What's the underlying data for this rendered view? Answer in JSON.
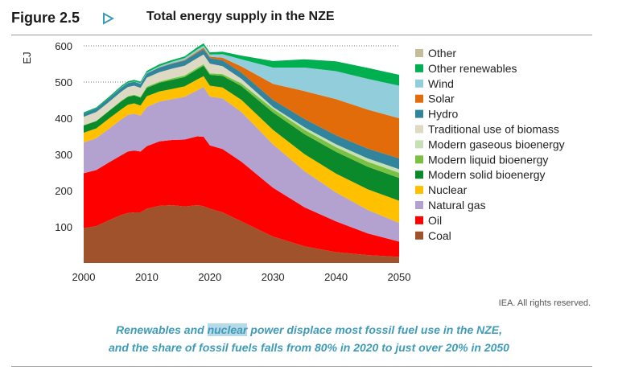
{
  "header": {
    "figure_label": "Figure 2.5",
    "title": "Total energy supply in the NZE"
  },
  "credit": "IEA. All rights reserved.",
  "caption": {
    "line1_before": "Renewables and ",
    "line1_highlight": "nuclear",
    "line1_after": " power displace most fossil fuel use in the NZE,",
    "line2": "and the share of fossil fuels falls from 80% in 2020 to just over 20% in 2050"
  },
  "chart_data": {
    "type": "area",
    "stacked": true,
    "title": "Total energy supply in the NZE",
    "xlabel": "",
    "ylabel": "EJ",
    "xlim": [
      2000,
      2050
    ],
    "ylim": [
      0,
      620
    ],
    "x_ticks": [
      2000,
      2010,
      2020,
      2030,
      2040,
      2050
    ],
    "y_ticks": [
      100,
      200,
      300,
      400,
      500,
      600
    ],
    "gridlines_dotted_at": [
      500,
      600
    ],
    "x": [
      2000,
      2002,
      2004,
      2006,
      2007,
      2008,
      2009,
      2010,
      2012,
      2014,
      2016,
      2018,
      2019,
      2020,
      2022,
      2025,
      2030,
      2035,
      2040,
      2045,
      2050
    ],
    "series": [
      {
        "name": "Coal",
        "color": "#a0522d",
        "values": [
          96,
          102,
          118,
          133,
          138,
          140,
          140,
          150,
          158,
          160,
          156,
          160,
          157,
          150,
          140,
          115,
          73,
          46,
          30,
          22,
          17
        ]
      },
      {
        "name": "Oil",
        "color": "#ff0000",
        "values": [
          152,
          155,
          160,
          165,
          170,
          171,
          168,
          173,
          178,
          180,
          185,
          190,
          192,
          175,
          175,
          165,
          135,
          108,
          85,
          60,
          42
        ]
      },
      {
        "name": "Natural gas",
        "color": "#b3a1d0",
        "values": [
          85,
          88,
          93,
          99,
          101,
          102,
          99,
          108,
          110,
          113,
          118,
          127,
          137,
          135,
          140,
          137,
          120,
          100,
          80,
          65,
          52
        ]
      },
      {
        "name": "Nuclear",
        "color": "#ffc000",
        "values": [
          27,
          27,
          28,
          28,
          28,
          28,
          28,
          30,
          28,
          28,
          29,
          30,
          30,
          30,
          30,
          34,
          40,
          47,
          52,
          57,
          61
        ]
      },
      {
        "name": "Modern solid bioenergy",
        "color": "#0a8a2a",
        "values": [
          20,
          20,
          21,
          22,
          22,
          22,
          22,
          23,
          24,
          25,
          26,
          28,
          29,
          30,
          32,
          38,
          48,
          55,
          60,
          62,
          63
        ]
      },
      {
        "name": "Modern liquid bioenergy",
        "color": "#7ac143",
        "values": [
          1,
          1,
          1,
          2,
          2,
          2,
          2,
          3,
          3,
          4,
          4,
          4,
          4,
          4,
          5,
          7,
          10,
          12,
          13,
          14,
          14
        ]
      },
      {
        "name": "Modern gaseous bioenergy",
        "color": "#c5e0b4",
        "values": [
          1,
          1,
          1,
          1,
          1,
          1,
          1,
          1,
          1,
          2,
          2,
          2,
          2,
          2,
          2,
          3,
          5,
          7,
          8,
          9,
          10
        ]
      },
      {
        "name": "Traditional use of biomass",
        "color": "#ddd9c3",
        "values": [
          22,
          23,
          23,
          24,
          24,
          24,
          24,
          24,
          25,
          25,
          25,
          25,
          25,
          25,
          20,
          10,
          0,
          0,
          0,
          0,
          0
        ]
      },
      {
        "name": "Hydro",
        "color": "#31849b",
        "values": [
          9,
          10,
          10,
          11,
          11,
          11,
          11,
          12,
          13,
          14,
          14,
          15,
          15,
          15,
          16,
          17,
          20,
          23,
          25,
          27,
          30
        ]
      },
      {
        "name": "Solar",
        "color": "#e26b0a",
        "values": [
          0,
          0,
          0,
          0,
          0,
          0,
          0,
          0,
          1,
          1,
          2,
          3,
          4,
          4,
          7,
          17,
          44,
          77,
          100,
          108,
          111
        ]
      },
      {
        "name": "Wind",
        "color": "#92cddc",
        "values": [
          0,
          0,
          0,
          1,
          1,
          1,
          2,
          2,
          3,
          4,
          5,
          6,
          6,
          6,
          10,
          20,
          45,
          65,
          77,
          85,
          90
        ]
      },
      {
        "name": "Other renewables",
        "color": "#00b050",
        "values": [
          3,
          3,
          4,
          4,
          4,
          4,
          4,
          5,
          5,
          5,
          5,
          6,
          6,
          6,
          7,
          10,
          18,
          23,
          27,
          30,
          30
        ]
      },
      {
        "name": "Other",
        "color": "#c4bd97",
        "values": [
          0,
          0,
          0,
          0,
          0,
          0,
          0,
          0,
          0,
          0,
          0,
          0,
          0,
          0,
          0,
          0,
          0,
          0,
          0,
          0,
          0
        ]
      }
    ],
    "legend_order": [
      "Other",
      "Other renewables",
      "Wind",
      "Solar",
      "Hydro",
      "Traditional use of biomass",
      "Modern gaseous bioenergy",
      "Modern liquid bioenergy",
      "Modern solid bioenergy",
      "Nuclear",
      "Natural gas",
      "Oil",
      "Coal"
    ],
    "legend_position": "right"
  }
}
